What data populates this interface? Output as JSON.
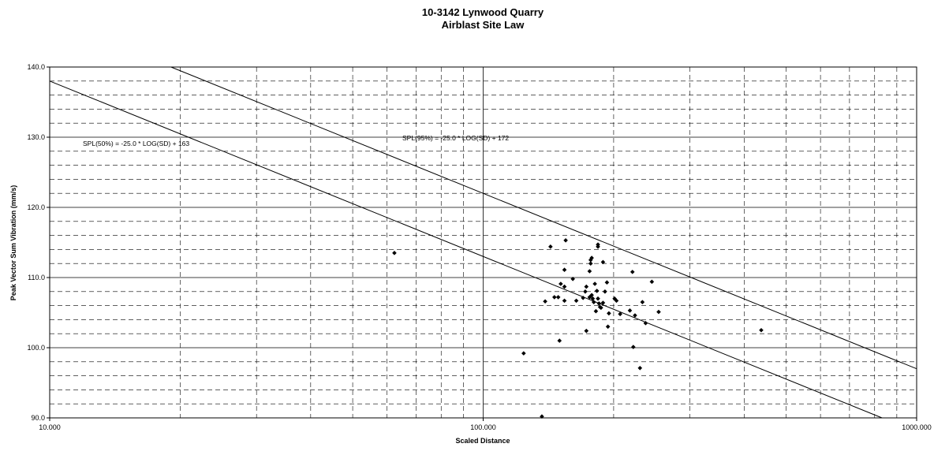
{
  "chart_data": {
    "type": "scatter",
    "title": [
      "10-3142 Lynwood Quarry",
      "Airblast Site Law"
    ],
    "x_label": "Scaled Distance",
    "y_label": "Peak Vector Sum Vibration (mm/s)",
    "xscale": "log",
    "xlim": [
      10,
      1000
    ],
    "ylim": [
      90,
      140
    ],
    "xticks": [
      {
        "value": 10,
        "label": "10.000"
      },
      {
        "value": 100,
        "label": "100.000"
      },
      {
        "value": 1000,
        "label": "1000.000"
      }
    ],
    "xminorticks": [
      20,
      30,
      40,
      50,
      60,
      70,
      80,
      90,
      200,
      300,
      400,
      500,
      600,
      700,
      800,
      900
    ],
    "yticks": [
      {
        "value": 90,
        "label": "90.0"
      },
      {
        "value": 100,
        "label": "100.0"
      },
      {
        "value": 110,
        "label": "110.0"
      },
      {
        "value": 120,
        "label": "120.0"
      },
      {
        "value": 130,
        "label": "130.0"
      },
      {
        "value": 140,
        "label": "140.0"
      }
    ],
    "yminorticks": [
      92,
      94,
      96,
      98,
      102,
      104,
      106,
      108,
      112,
      114,
      116,
      118,
      122,
      124,
      126,
      128,
      132,
      134,
      136,
      138
    ],
    "grid": true,
    "series": [
      {
        "color": "#000000",
        "x": [
          62.4,
          124,
          136.6,
          139,
          143,
          146,
          149,
          150,
          151,
          154,
          154,
          154,
          155,
          161,
          164,
          170,
          172,
          173,
          173,
          176,
          176,
          177,
          177,
          178,
          178,
          179,
          180,
          181,
          182,
          183,
          184,
          184,
          184,
          185,
          186,
          187,
          189,
          189,
          191,
          193,
          194,
          195,
          201,
          203,
          207,
          218,
          221,
          222,
          224,
          230,
          233,
          237,
          245,
          254,
          438
        ],
        "values": [
          113.5,
          99.2,
          90.2,
          106.6,
          114.4,
          107.2,
          107.2,
          101.0,
          109.1,
          108.7,
          106.7,
          111.1,
          115.3,
          109.8,
          106.7,
          107.1,
          108.0,
          108.7,
          102.4,
          107.2,
          110.9,
          112.5,
          112.0,
          107.5,
          112.8,
          107.0,
          106.5,
          109.1,
          105.2,
          108.1,
          114.7,
          114.4,
          107.0,
          106.3,
          105.8,
          105.7,
          112.2,
          106.4,
          108.0,
          109.3,
          103.0,
          104.9,
          107.0,
          106.7,
          104.8,
          105.3,
          110.8,
          100.1,
          104.6,
          97.1,
          106.5,
          103.5,
          109.4,
          105.1,
          102.5
        ]
      }
    ],
    "lines": [
      {
        "color": "#000000",
        "x": [
          10,
          832
        ],
        "values": [
          138,
          90
        ]
      },
      {
        "color": "#000000",
        "x": [
          19.05,
          1000
        ],
        "values": [
          140,
          97
        ]
      }
    ],
    "annotations": [
      "SPL(50%) = -25.0 * LOG(SD) + 163",
      "SPL(95%) = -25.0 * LOG(SD) + 172"
    ]
  }
}
